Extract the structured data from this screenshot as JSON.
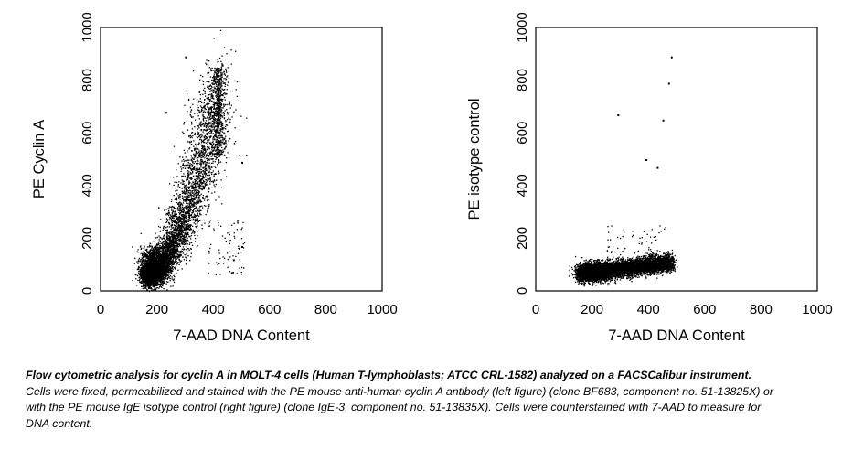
{
  "chart_data": [
    {
      "type": "scatter",
      "title": "",
      "xlabel": "7-AAD DNA Content",
      "ylabel": "PE Cyclin A",
      "xlim": [
        0,
        1000
      ],
      "ylim": [
        0,
        1000
      ],
      "xticks": [
        "0",
        "200",
        "400",
        "600",
        "800",
        "1000"
      ],
      "yticks": [
        "0",
        "200",
        "400",
        "600",
        "800",
        "1000"
      ],
      "grid": false,
      "description": "Dense population rising diagonally from ~(180,60) to ~(420,850)",
      "points": [
        [
          150,
          40
        ],
        [
          170,
          60
        ],
        [
          190,
          90
        ],
        [
          210,
          120
        ],
        [
          230,
          160
        ],
        [
          250,
          200
        ],
        [
          270,
          240
        ],
        [
          290,
          280
        ],
        [
          310,
          320
        ],
        [
          330,
          360
        ],
        [
          350,
          420
        ],
        [
          370,
          480
        ],
        [
          390,
          560
        ],
        [
          400,
          640
        ],
        [
          410,
          720
        ],
        [
          420,
          800
        ],
        [
          430,
          860
        ],
        [
          300,
          890
        ],
        [
          230,
          680
        ],
        [
          500,
          490
        ],
        [
          500,
          170
        ],
        [
          470,
          120
        ]
      ]
    },
    {
      "type": "scatter",
      "title": "",
      "xlabel": "7-AAD DNA Content",
      "ylabel": "PE isotype control",
      "xlim": [
        0,
        1000
      ],
      "ylim": [
        0,
        1000
      ],
      "xticks": [
        "0",
        "200",
        "400",
        "600",
        "800",
        "1000"
      ],
      "yticks": [
        "0",
        "200",
        "400",
        "600",
        "800",
        "1000"
      ],
      "grid": false,
      "description": "Horizontal cluster at PE ~50-120 spanning DNA content ~150-480",
      "points": [
        [
          150,
          50
        ],
        [
          200,
          65
        ],
        [
          250,
          75
        ],
        [
          300,
          80
        ],
        [
          350,
          90
        ],
        [
          400,
          100
        ],
        [
          450,
          110
        ],
        [
          480,
          120
        ],
        [
          290,
          670
        ],
        [
          450,
          650
        ],
        [
          480,
          890
        ],
        [
          470,
          790
        ],
        [
          390,
          500
        ],
        [
          430,
          470
        ],
        [
          380,
          320
        ],
        [
          280,
          220
        ]
      ]
    }
  ],
  "caption": {
    "bold": "Flow cytometric analysis for cyclin A in MOLT-4 cells (Human T-lymphoblasts; ATCC CRL-1582) analyzed on a FACSCalibur instrument.",
    "text": " Cells were fixed, permeabilized and stained with the PE mouse anti-human cyclin A antibody (left figure) (clone BF683, component no. 51-13825X) or with the PE mouse IgE isotype control (right figure) (clone IgE-3, component no. 51-13835X). Cells were counterstained with 7-AAD to measure for DNA content."
  }
}
